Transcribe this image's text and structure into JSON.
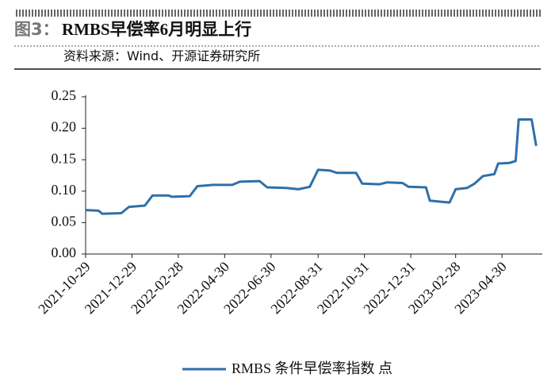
{
  "chart_data": {
    "type": "line",
    "figure_label": "图3：",
    "title": "RMBS早偿率6月明显上行",
    "source": "资料来源：Wind、开源证券研究所",
    "x": [
      "2021-10-29",
      "2021-11-15",
      "2021-11-20",
      "2021-12-15",
      "2021-12-25",
      "2022-01-15",
      "2022-01-25",
      "2022-02-15",
      "2022-02-20",
      "2022-03-15",
      "2022-03-25",
      "2022-04-15",
      "2022-05-10",
      "2022-05-20",
      "2022-06-15",
      "2022-06-25",
      "2022-07-20",
      "2022-08-05",
      "2022-08-20",
      "2022-08-31",
      "2022-09-15",
      "2022-09-25",
      "2022-10-20",
      "2022-10-28",
      "2022-11-20",
      "2022-11-30",
      "2022-12-20",
      "2022-12-28",
      "2023-01-20",
      "2023-01-25",
      "2023-02-10",
      "2023-02-20",
      "2023-02-28",
      "2023-03-15",
      "2023-03-25",
      "2023-04-05",
      "2023-04-20",
      "2023-04-25",
      "2023-05-10",
      "2023-05-18",
      "2023-05-22",
      "2023-06-08",
      "2023-06-14"
    ],
    "series": [
      {
        "name": "RMBS 条件早偿率指数 点",
        "color": "#2f6fa8",
        "values": [
          0.07,
          0.069,
          0.064,
          0.065,
          0.075,
          0.077,
          0.093,
          0.093,
          0.091,
          0.092,
          0.108,
          0.11,
          0.11,
          0.115,
          0.116,
          0.106,
          0.105,
          0.103,
          0.107,
          0.134,
          0.133,
          0.129,
          0.129,
          0.112,
          0.111,
          0.114,
          0.113,
          0.107,
          0.106,
          0.085,
          0.083,
          0.082,
          0.103,
          0.105,
          0.112,
          0.124,
          0.127,
          0.144,
          0.145,
          0.148,
          0.214,
          0.214,
          0.172
        ]
      }
    ],
    "xlim": [
      "2021-10-29",
      "2023-06-20"
    ],
    "xticks": [
      "2021-10-29",
      "2021-12-29",
      "2022-02-28",
      "2022-04-30",
      "2022-06-30",
      "2022-08-31",
      "2022-10-31",
      "2022-12-31",
      "2023-02-28",
      "2023-04-30"
    ],
    "ylim": [
      0,
      0.25
    ],
    "yticks": [
      {
        "value": 0,
        "label": "0.00"
      },
      {
        "value": 0.05,
        "label": "0.05"
      },
      {
        "value": 0.1,
        "label": "0.10"
      },
      {
        "value": 0.15,
        "label": "0.15"
      },
      {
        "value": 0.2,
        "label": "0.20"
      },
      {
        "value": 0.25,
        "label": "0.25"
      }
    ],
    "legend": "bottom"
  }
}
